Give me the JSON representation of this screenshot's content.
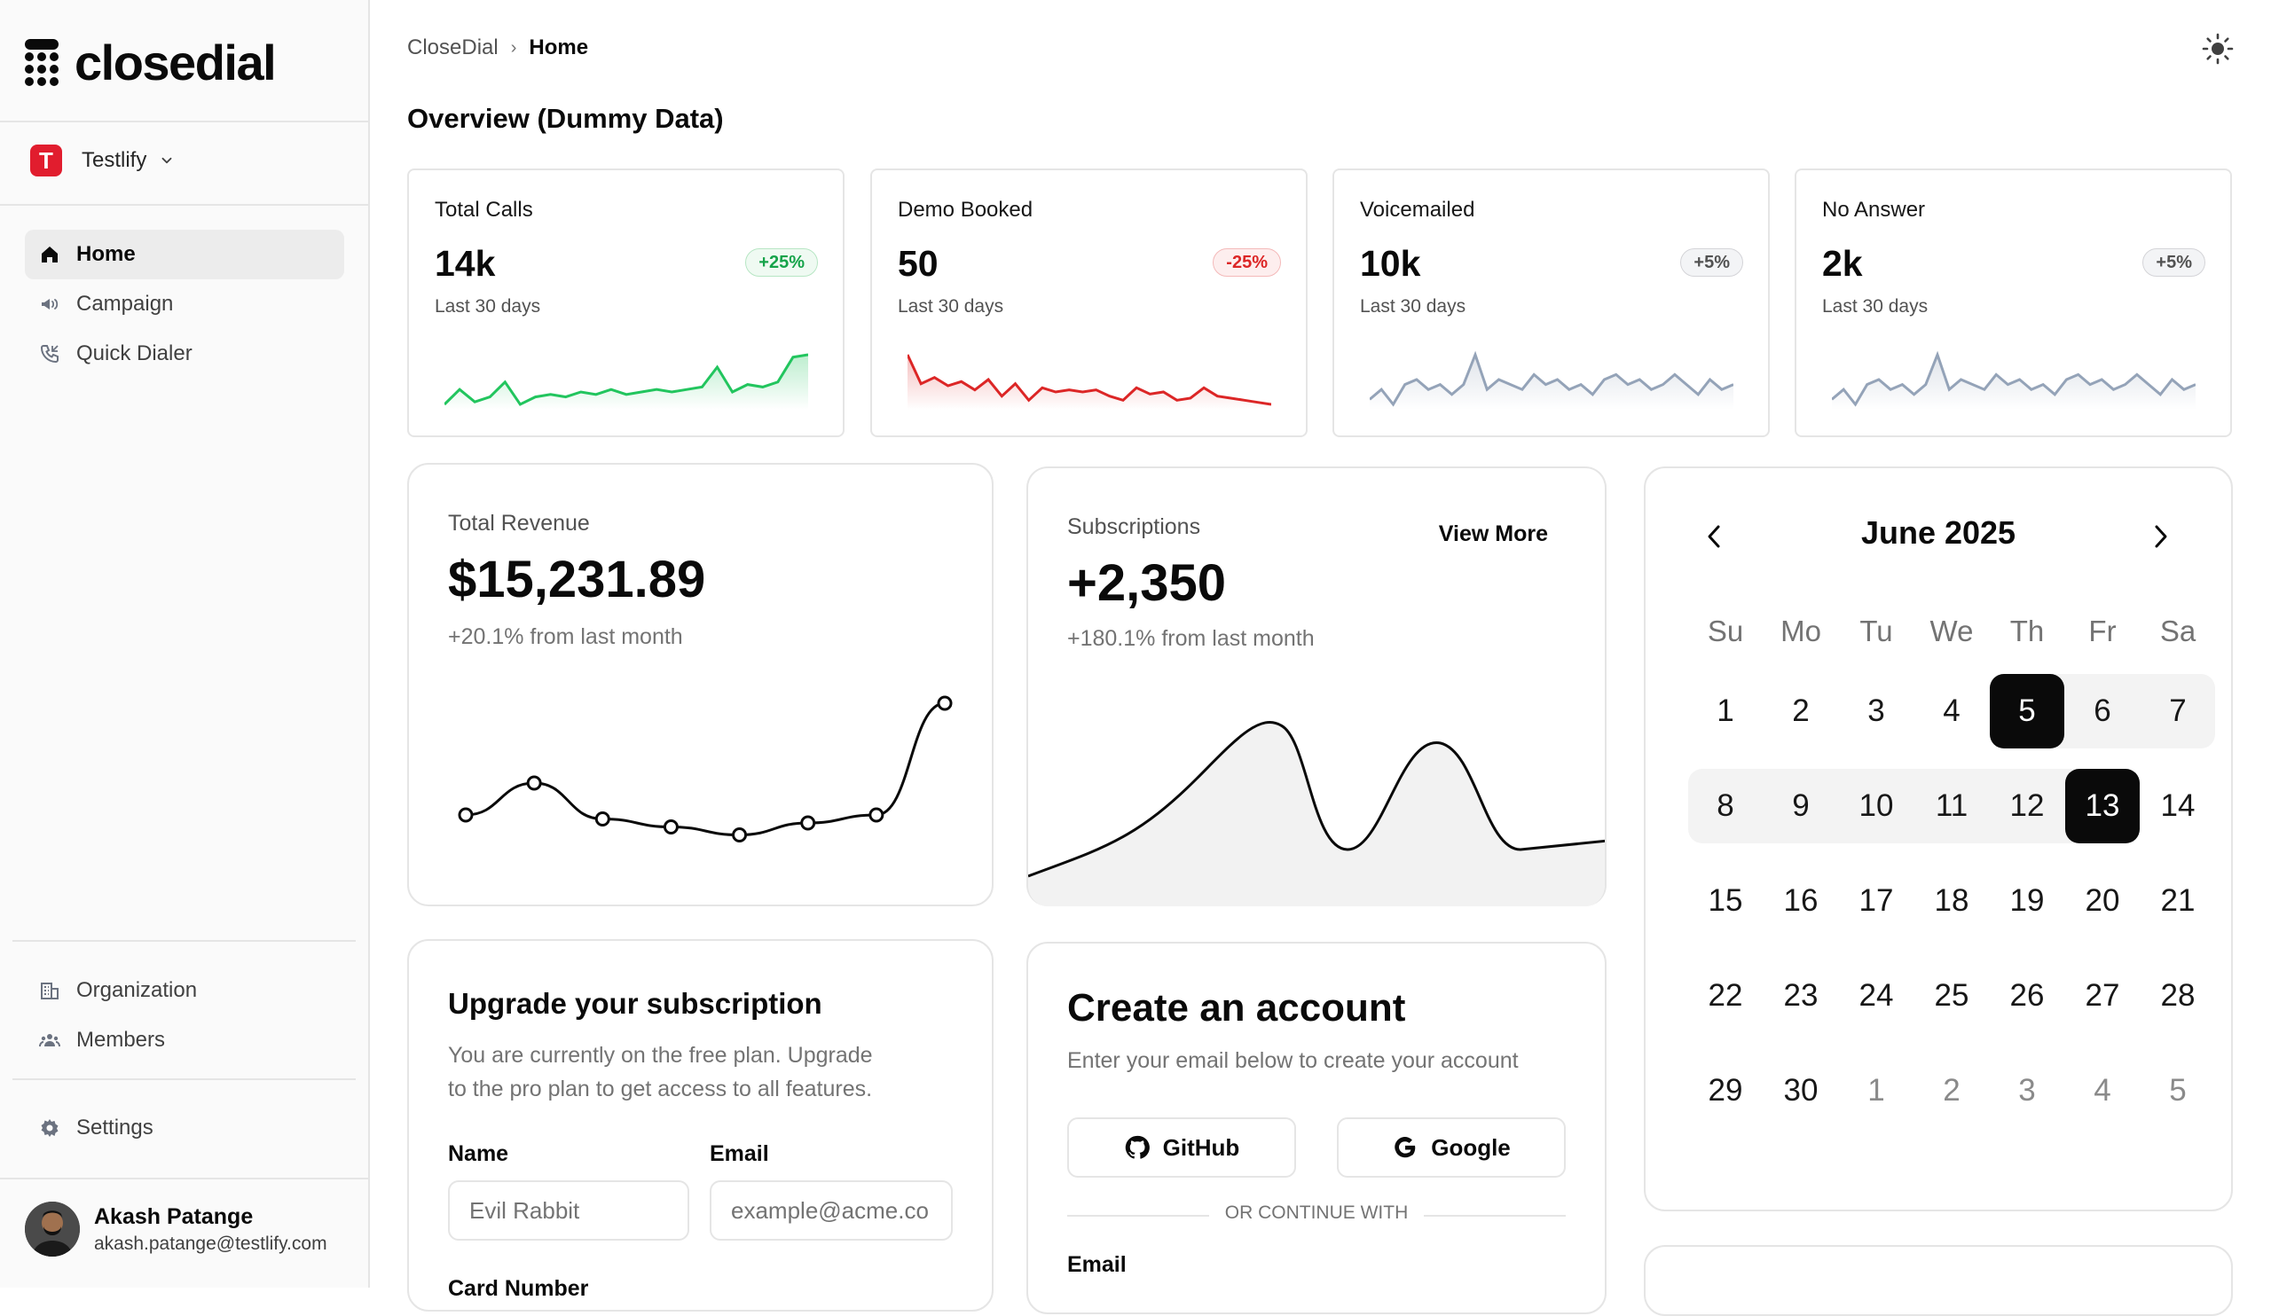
{
  "brand": {
    "name": "closedial"
  },
  "workspace": {
    "badge": "T",
    "name": "Testlify"
  },
  "nav": {
    "primary": [
      {
        "label": "Home",
        "icon": "home-icon"
      },
      {
        "label": "Campaign",
        "icon": "megaphone-icon"
      },
      {
        "label": "Quick Dialer",
        "icon": "phone-icon"
      }
    ],
    "secondary": [
      {
        "label": "Organization",
        "icon": "building-icon"
      },
      {
        "label": "Members",
        "icon": "users-icon"
      }
    ],
    "settings": {
      "label": "Settings",
      "icon": "gear-icon"
    }
  },
  "user": {
    "name": "Akash Patange",
    "email": "akash.patange@testlify.com"
  },
  "breadcrumb": {
    "root": "CloseDial",
    "current": "Home"
  },
  "page": {
    "title": "Overview (Dummy Data)"
  },
  "stats": [
    {
      "label": "Total Calls",
      "value": "14k",
      "change": "+25%",
      "period": "Last 30 days",
      "trend": "up",
      "spark": [
        3,
        9,
        4,
        6,
        12,
        3,
        6,
        7,
        6,
        8,
        7,
        9,
        7,
        8,
        9,
        8,
        9,
        10,
        18,
        8,
        11,
        10,
        12,
        22,
        23
      ]
    },
    {
      "label": "Demo Booked",
      "value": "50",
      "change": "-25%",
      "period": "Last 30 days",
      "trend": "down",
      "spark": [
        32,
        18,
        21,
        17,
        19,
        15,
        20,
        12,
        18,
        10,
        16,
        14,
        15,
        14,
        15,
        12,
        10,
        16,
        13,
        14,
        10,
        11,
        16,
        12,
        11,
        10,
        9,
        8
      ]
    },
    {
      "label": "Voicemailed",
      "value": "10k",
      "change": "+5%",
      "period": "Last 30 days",
      "trend": "flat",
      "spark": [
        5,
        7,
        4,
        8,
        9,
        7,
        8,
        6,
        8,
        14,
        7,
        9,
        8,
        7,
        10,
        8,
        9,
        7,
        8,
        6,
        9,
        10,
        8,
        9,
        7,
        8,
        10,
        8,
        6,
        9,
        7,
        8
      ]
    },
    {
      "label": "No Answer",
      "value": "2k",
      "change": "+5%",
      "period": "Last 30 days",
      "trend": "flat",
      "spark": [
        5,
        7,
        4,
        8,
        9,
        7,
        8,
        6,
        8,
        14,
        7,
        9,
        8,
        7,
        10,
        8,
        9,
        7,
        8,
        6,
        9,
        10,
        8,
        9,
        7,
        8,
        10,
        8,
        6,
        9,
        7,
        8
      ]
    }
  ],
  "revenue": {
    "label": "Total Revenue",
    "value": "$15,231.89",
    "change": "+20.1% from last month",
    "points": [
      20,
      28,
      19,
      17,
      15,
      18,
      20,
      48
    ]
  },
  "subscriptions": {
    "label": "Subscriptions",
    "value": "+2,350",
    "change": "+180.1% from last month",
    "view_more": "View More"
  },
  "calendar": {
    "month": "June 2025",
    "weekdays": [
      "Su",
      "Mo",
      "Tu",
      "We",
      "Th",
      "Fr",
      "Sa"
    ],
    "days": [
      1,
      2,
      3,
      4,
      5,
      6,
      7,
      8,
      9,
      10,
      11,
      12,
      13,
      14,
      15,
      16,
      17,
      18,
      19,
      20,
      21,
      22,
      23,
      24,
      25,
      26,
      27,
      28,
      29,
      30
    ],
    "trailing": [
      1,
      2,
      3,
      4,
      5
    ],
    "selected": [
      5,
      13
    ],
    "range_rows": [
      [
        5,
        7
      ],
      [
        8,
        13
      ]
    ]
  },
  "upgrade": {
    "title": "Upgrade your subscription",
    "description_1": "You are currently on the free plan. Upgrade",
    "description_2": "to the pro plan to get access to all features.",
    "name_label": "Name",
    "name_placeholder": "Evil Rabbit",
    "email_label": "Email",
    "email_placeholder": "example@acme.co",
    "card_label": "Card Number"
  },
  "create_account": {
    "title": "Create an account",
    "subtitle": "Enter your email below to create your account",
    "github": "GitHub",
    "google": "Google",
    "divider": "OR CONTINUE WITH",
    "email_label": "Email"
  },
  "colors": {
    "green": "#22c55e",
    "red": "#dc2626",
    "gray": "#94a3b8"
  }
}
